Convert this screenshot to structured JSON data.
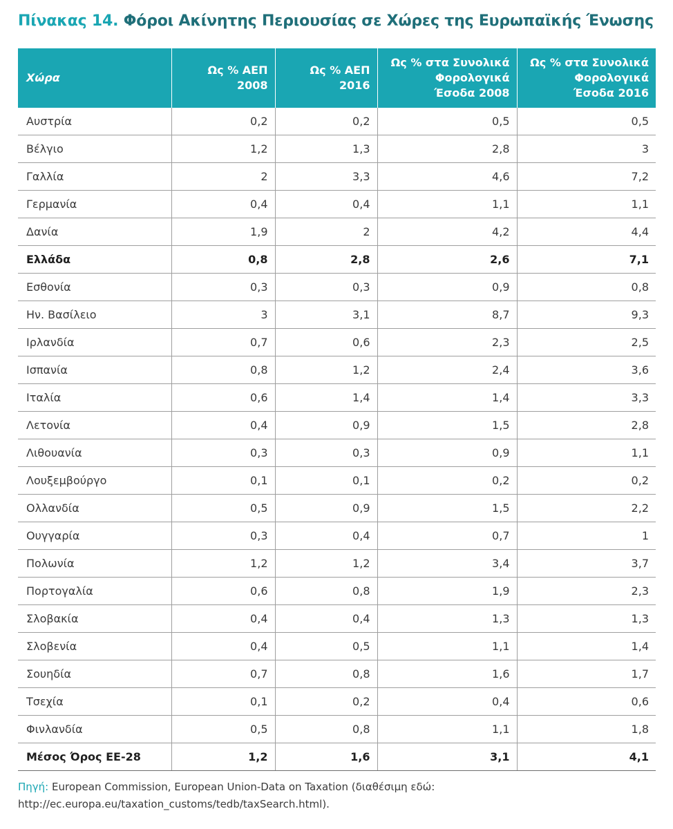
{
  "title": {
    "label": "Πίνακας 14.",
    "text": "Φόροι Ακίνητης Περιουσίας σε Χώρες της Ευρωπαϊκής Ένωσης"
  },
  "table": {
    "headers": [
      {
        "lines": [
          "Χώρα"
        ]
      },
      {
        "lines": [
          "Ως % ΑΕΠ",
          "2008"
        ]
      },
      {
        "lines": [
          "Ως % ΑΕΠ",
          "2016"
        ]
      },
      {
        "lines": [
          "Ως % στα Συνολικά",
          "Φορολογικά",
          "Έσοδα 2008"
        ]
      },
      {
        "lines": [
          "Ως % στα Συνολικά",
          "Φορολογικά",
          "Έσοδα 2016"
        ]
      }
    ],
    "rows": [
      {
        "cells": [
          "Αυστρία",
          "0,2",
          "0,2",
          "0,5",
          "0,5"
        ],
        "bold": false
      },
      {
        "cells": [
          "Βέλγιο",
          "1,2",
          "1,3",
          "2,8",
          "3"
        ],
        "bold": false
      },
      {
        "cells": [
          "Γαλλία",
          "2",
          "3,3",
          "4,6",
          "7,2"
        ],
        "bold": false
      },
      {
        "cells": [
          "Γερμανία",
          "0,4",
          "0,4",
          "1,1",
          "1,1"
        ],
        "bold": false
      },
      {
        "cells": [
          "Δανία",
          "1,9",
          "2",
          "4,2",
          "4,4"
        ],
        "bold": false
      },
      {
        "cells": [
          "Ελλάδα",
          "0,8",
          "2,8",
          "2,6",
          "7,1"
        ],
        "bold": true
      },
      {
        "cells": [
          "Εσθονία",
          "0,3",
          "0,3",
          "0,9",
          "0,8"
        ],
        "bold": false
      },
      {
        "cells": [
          "Ην. Βασίλειο",
          "3",
          "3,1",
          "8,7",
          "9,3"
        ],
        "bold": false
      },
      {
        "cells": [
          "Ιρλανδία",
          "0,7",
          "0,6",
          "2,3",
          "2,5"
        ],
        "bold": false
      },
      {
        "cells": [
          "Ισπανία",
          "0,8",
          "1,2",
          "2,4",
          "3,6"
        ],
        "bold": false
      },
      {
        "cells": [
          "Ιταλία",
          "0,6",
          "1,4",
          "1,4",
          "3,3"
        ],
        "bold": false
      },
      {
        "cells": [
          "Λετονία",
          "0,4",
          "0,9",
          "1,5",
          "2,8"
        ],
        "bold": false
      },
      {
        "cells": [
          "Λιθουανία",
          "0,3",
          "0,3",
          "0,9",
          "1,1"
        ],
        "bold": false
      },
      {
        "cells": [
          "Λουξεμβούργο",
          "0,1",
          "0,1",
          "0,2",
          "0,2"
        ],
        "bold": false
      },
      {
        "cells": [
          "Ολλανδία",
          "0,5",
          "0,9",
          "1,5",
          "2,2"
        ],
        "bold": false
      },
      {
        "cells": [
          "Ουγγαρία",
          "0,3",
          "0,4",
          "0,7",
          "1"
        ],
        "bold": false
      },
      {
        "cells": [
          "Πολωνία",
          "1,2",
          "1,2",
          "3,4",
          "3,7"
        ],
        "bold": false
      },
      {
        "cells": [
          "Πορτογαλία",
          "0,6",
          "0,8",
          "1,9",
          "2,3"
        ],
        "bold": false
      },
      {
        "cells": [
          "Σλοβακία",
          "0,4",
          "0,4",
          "1,3",
          "1,3"
        ],
        "bold": false
      },
      {
        "cells": [
          "Σλοβενία",
          "0,4",
          "0,5",
          "1,1",
          "1,4"
        ],
        "bold": false
      },
      {
        "cells": [
          "Σουηδία",
          "0,7",
          "0,8",
          "1,6",
          "1,7"
        ],
        "bold": false
      },
      {
        "cells": [
          "Τσεχία",
          "0,1",
          "0,2",
          "0,4",
          "0,6"
        ],
        "bold": false
      },
      {
        "cells": [
          "Φινλανδία",
          "0,5",
          "0,8",
          "1,1",
          "1,8"
        ],
        "bold": false
      },
      {
        "cells": [
          "Μέσος Όρος ΕΕ-28",
          "1,2",
          "1,6",
          "3,1",
          "4,1"
        ],
        "bold": true
      }
    ]
  },
  "source": {
    "label": "Πηγή:",
    "text": " European Commission, European Union-Data on Taxation (διαθέσιμη εδώ: http://ec.europa.eu/taxation_customs/tedb/taxSearch.html)."
  },
  "colors": {
    "header_bg": "#1aa6b3",
    "title_accent": "#1aa6b3",
    "title_text": "#1f6f79",
    "grid": "#9e9e9e"
  }
}
